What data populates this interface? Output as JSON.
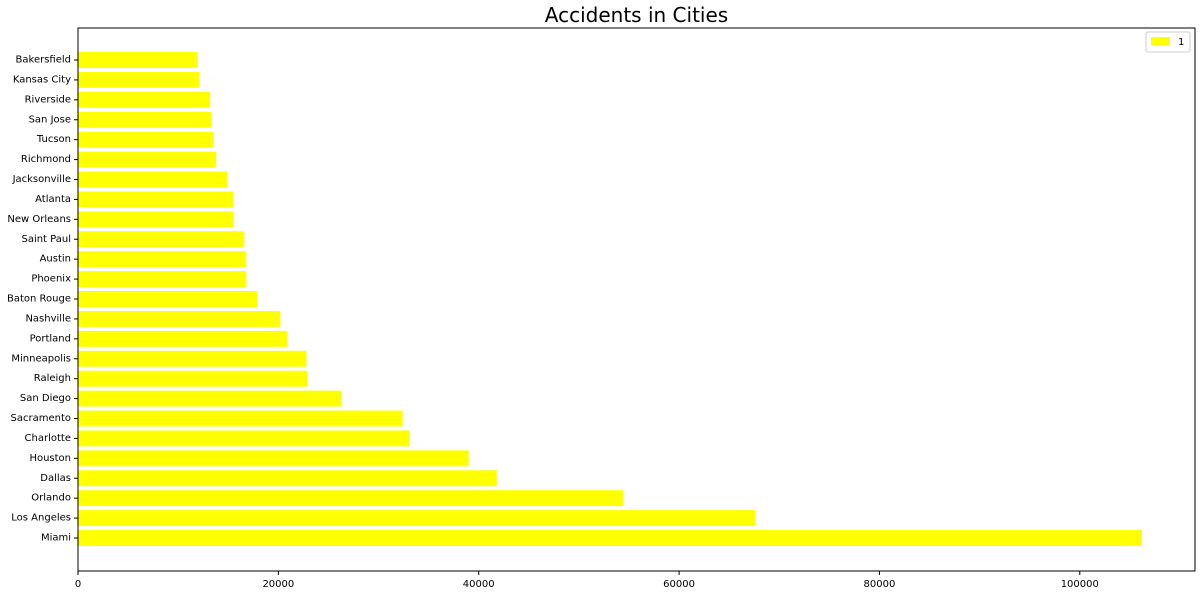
{
  "chart_data": {
    "type": "bar",
    "orientation": "horizontal",
    "title": "Accidents in Cities",
    "xlabel": "",
    "ylabel": "",
    "categories": [
      "Miami",
      "Los Angeles",
      "Orlando",
      "Dallas",
      "Houston",
      "Charlotte",
      "Sacramento",
      "San Diego",
      "Raleigh",
      "Minneapolis",
      "Portland",
      "Nashville",
      "Baton Rouge",
      "Phoenix",
      "Austin",
      "Saint Paul",
      "New Orleans",
      "Atlanta",
      "Jacksonville",
      "Richmond",
      "Tucson",
      "San Jose",
      "Riverside",
      "Kansas City",
      "Bakersfield"
    ],
    "series": [
      {
        "name": "1",
        "color": "#ffff00",
        "values": [
          106200,
          67600,
          54400,
          41800,
          39000,
          33100,
          32400,
          26300,
          22900,
          22800,
          20900,
          20200,
          17900,
          16800,
          16800,
          16600,
          15500,
          15500,
          14900,
          13800,
          13500,
          13300,
          13200,
          12100,
          11900
        ]
      }
    ],
    "xlim": [
      0,
      111500
    ],
    "xticks": [
      "0",
      "20000",
      "40000",
      "60000",
      "80000",
      "100000"
    ],
    "grid": false,
    "legend_position": "top-right"
  }
}
